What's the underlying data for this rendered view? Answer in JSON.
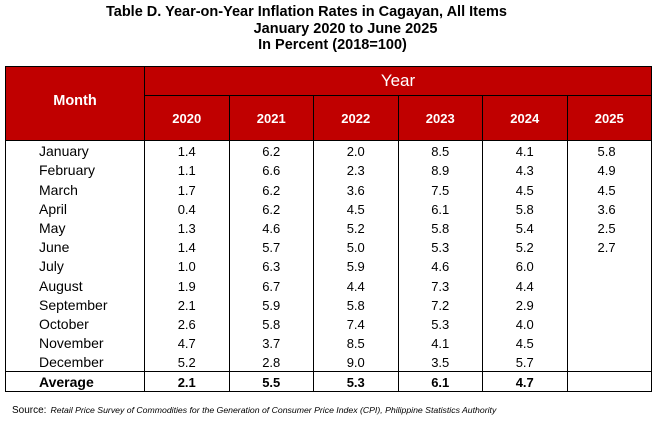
{
  "title": {
    "line1": "Table D. Year-on-Year Inflation Rates in Cagayan, All Items",
    "line2": "January 2020 to June 2025",
    "line3": "In Percent (2018=100)"
  },
  "table": {
    "header_group": "Year",
    "month_header": "Month",
    "years": [
      "2020",
      "2021",
      "2022",
      "2023",
      "2024",
      "2025"
    ],
    "rows": [
      {
        "month": "January",
        "values": [
          "1.4",
          "6.2",
          "2.0",
          "8.5",
          "4.1",
          "5.8"
        ]
      },
      {
        "month": "February",
        "values": [
          "1.1",
          "6.6",
          "2.3",
          "8.9",
          "4.3",
          "4.9"
        ]
      },
      {
        "month": "March",
        "values": [
          "1.7",
          "6.2",
          "3.6",
          "7.5",
          "4.5",
          "4.5"
        ]
      },
      {
        "month": "April",
        "values": [
          "0.4",
          "6.2",
          "4.5",
          "6.1",
          "5.8",
          "3.6"
        ]
      },
      {
        "month": "May",
        "values": [
          "1.3",
          "4.6",
          "5.2",
          "5.8",
          "5.4",
          "2.5"
        ]
      },
      {
        "month": "June",
        "values": [
          "1.4",
          "5.7",
          "5.0",
          "5.3",
          "5.2",
          "2.7"
        ]
      },
      {
        "month": "July",
        "values": [
          "1.0",
          "6.3",
          "5.9",
          "4.6",
          "6.0",
          ""
        ]
      },
      {
        "month": "August",
        "values": [
          "1.9",
          "6.7",
          "4.4",
          "7.3",
          "4.4",
          ""
        ]
      },
      {
        "month": "September",
        "values": [
          "2.1",
          "5.9",
          "5.8",
          "7.2",
          "2.9",
          ""
        ]
      },
      {
        "month": "October",
        "values": [
          "2.6",
          "5.8",
          "7.4",
          "5.3",
          "4.0",
          ""
        ]
      },
      {
        "month": "November",
        "values": [
          "4.7",
          "3.7",
          "8.5",
          "4.1",
          "4.5",
          ""
        ]
      },
      {
        "month": "December",
        "values": [
          "5.2",
          "2.8",
          "9.0",
          "3.5",
          "5.7",
          ""
        ]
      }
    ],
    "average": {
      "label": "Average",
      "values": [
        "2.1",
        "5.5",
        "5.3",
        "6.1",
        "4.7",
        ""
      ]
    }
  },
  "source": {
    "label": "Source:",
    "text": "Retail Price Survey of Commodities for the Generation of Consumer Price Index (CPI), Philippine Statistics Authority"
  },
  "colors": {
    "header_background": "#c00000",
    "header_text": "#ffffff"
  }
}
